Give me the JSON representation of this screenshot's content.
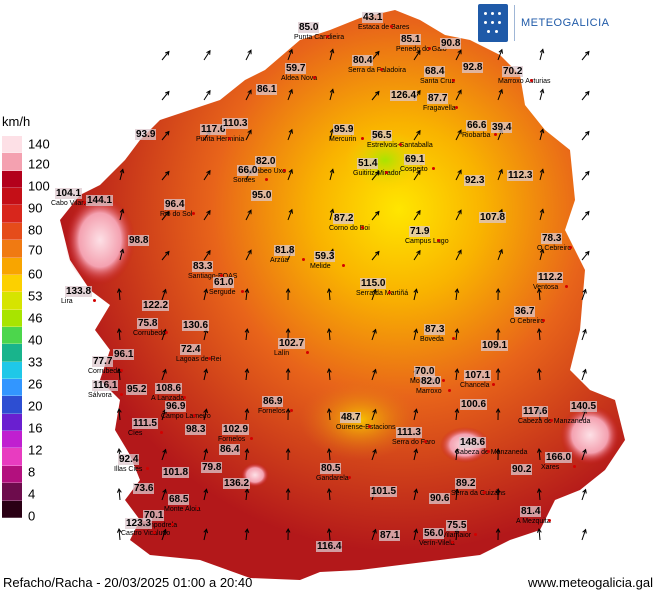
{
  "header": {
    "logo_text": "METEOGALICIA",
    "logo_icon": "meteogalicia-crest-icon"
  },
  "legend": {
    "title": "km/h",
    "labels": [
      "140",
      "120",
      "100",
      "90",
      "80",
      "70",
      "60",
      "53",
      "46",
      "40",
      "33",
      "26",
      "20",
      "16",
      "12",
      "8",
      "4",
      "0"
    ],
    "colors": [
      "#fde0e6",
      "#f4a1b0",
      "#b3001b",
      "#c40f17",
      "#d8261c",
      "#e54c1a",
      "#f07a12",
      "#f8a500",
      "#fcd000",
      "#d6e400",
      "#a8e400",
      "#4cd64c",
      "#19b48c",
      "#1fc8e8",
      "#3296ff",
      "#2d4ed2",
      "#6a1fd0",
      "#c01fd0",
      "#e83cc0",
      "#b3107e",
      "#6d0c4c",
      "#2a0014"
    ]
  },
  "footer": {
    "left": "Refacho/Racha - 20/03/2025 01:00 a 20:40",
    "right": "www.meteogalicia.gal"
  },
  "stations": [
    {
      "value": "85.0",
      "place": "Punta Candieira"
    },
    {
      "value": "43.1",
      "place": "Estaca de Bares"
    },
    {
      "value": "85.1",
      "place": "Penedo do Galo"
    },
    {
      "value": "90.8",
      "place": ""
    },
    {
      "value": "80.4",
      "place": "Serra da Faladoira"
    },
    {
      "value": "59.7",
      "place": "Aldea Nova"
    },
    {
      "value": "68.4",
      "place": "Santa Cruz"
    },
    {
      "value": "92.8",
      "place": ""
    },
    {
      "value": "70.2",
      "place": "Marroxo Asturias"
    },
    {
      "value": "86.1",
      "place": ""
    },
    {
      "value": "126.4",
      "place": ""
    },
    {
      "value": "87.7",
      "place": "Fragavella"
    },
    {
      "value": "117.6",
      "place": "Punta Herminia"
    },
    {
      "value": "110.3",
      "place": ""
    },
    {
      "value": "93.9",
      "place": ""
    },
    {
      "value": "95.9",
      "place": "Mercurin"
    },
    {
      "value": "56.5",
      "place": "Estrelvois-Santaballa"
    },
    {
      "value": "66.6",
      "place": "Riobarba"
    },
    {
      "value": "39.4",
      "place": ""
    },
    {
      "value": "82.0",
      "place": "Cabeo Uxo"
    },
    {
      "value": "66.0",
      "place": "Sordes"
    },
    {
      "value": "51.4",
      "place": "Guitiriz-Mirador"
    },
    {
      "value": "69.1",
      "place": "Cospeito"
    },
    {
      "value": "92.3",
      "place": ""
    },
    {
      "value": "112.3",
      "place": ""
    },
    {
      "value": "104.1",
      "place": "Cabo Vilano"
    },
    {
      "value": "144.1",
      "place": ""
    },
    {
      "value": "95.0",
      "place": ""
    },
    {
      "value": "96.4",
      "place": "Rio do Sol"
    },
    {
      "value": "87.2",
      "place": "Corno do Boi"
    },
    {
      "value": "107.8",
      "place": ""
    },
    {
      "value": "71.9",
      "place": "Campus Lugo"
    },
    {
      "value": "98.8",
      "place": ""
    },
    {
      "value": "78.3",
      "place": "O Cebreiro"
    },
    {
      "value": "81.8",
      "place": "Arzúa"
    },
    {
      "value": "59.3",
      "place": "Melide"
    },
    {
      "value": "83.3",
      "place": "Santiago-EOAS"
    },
    {
      "value": "61.0",
      "place": "Sergude"
    },
    {
      "value": "112.2",
      "place": "Ventosa"
    },
    {
      "value": "133.8",
      "place": "Lira"
    },
    {
      "value": "115.0",
      "place": "Serra da Martiñá"
    },
    {
      "value": "122.2",
      "place": ""
    },
    {
      "value": "36.7",
      "place": "O Cebreiro"
    },
    {
      "value": "75.8",
      "place": "Corrubedo"
    },
    {
      "value": "130.6",
      "place": ""
    },
    {
      "value": "87.3",
      "place": "Boveda"
    },
    {
      "value": "102.7",
      "place": "Lalín"
    },
    {
      "value": "109.1",
      "place": ""
    },
    {
      "value": "72.4",
      "place": "Lagoas de Rei"
    },
    {
      "value": "96.1",
      "place": ""
    },
    {
      "value": "77.7",
      "place": "Corrubedo"
    },
    {
      "value": "70.0",
      "place": "Monforte"
    },
    {
      "value": "82.0",
      "place": "Marroxo"
    },
    {
      "value": "107.1",
      "place": "Chancela"
    },
    {
      "value": "116.1",
      "place": "Sálvora"
    },
    {
      "value": "95.2",
      "place": ""
    },
    {
      "value": "108.6",
      "place": "A Lanzada"
    },
    {
      "value": "96.9",
      "place": "Campo Lameiro"
    },
    {
      "value": "86.9",
      "place": "Fornelos"
    },
    {
      "value": "100.6",
      "place": ""
    },
    {
      "value": "117.6",
      "place": "Cabeza de Manzaneda"
    },
    {
      "value": "140.5",
      "place": ""
    },
    {
      "value": "111.5",
      "place": "Cíes"
    },
    {
      "value": "98.3",
      "place": ""
    },
    {
      "value": "102.9",
      "place": "Fornelos"
    },
    {
      "value": "48.7",
      "place": "Ourense-Estacions"
    },
    {
      "value": "111.3",
      "place": "Serra do Faro"
    },
    {
      "value": "148.6",
      "place": "Cabeza de Manzaneda"
    },
    {
      "value": "86.4",
      "place": ""
    },
    {
      "value": "92.4",
      "place": "Illas Cies"
    },
    {
      "value": "101.8",
      "place": ""
    },
    {
      "value": "79.8",
      "place": ""
    },
    {
      "value": "166.0",
      "place": "Xares"
    },
    {
      "value": "80.5",
      "place": "Gandarela"
    },
    {
      "value": "90.2",
      "place": ""
    },
    {
      "value": "136.2",
      "place": ""
    },
    {
      "value": "89.2",
      "place": "Serra da Guizáns"
    },
    {
      "value": "73.6",
      "place": ""
    },
    {
      "value": "101.5",
      "place": ""
    },
    {
      "value": "68.5",
      "place": "Monte Aloia"
    },
    {
      "value": "90.6",
      "place": ""
    },
    {
      "value": "81.4",
      "place": "A Mezquita"
    },
    {
      "value": "70.1",
      "place": "Campodrela"
    },
    {
      "value": "123.3",
      "place": "Castro Vicaludo"
    },
    {
      "value": "75.5",
      "place": "Vilamaior"
    },
    {
      "value": "56.0",
      "place": "Verín-Vilela"
    },
    {
      "value": "87.1",
      "place": ""
    },
    {
      "value": "116.4",
      "place": ""
    }
  ]
}
